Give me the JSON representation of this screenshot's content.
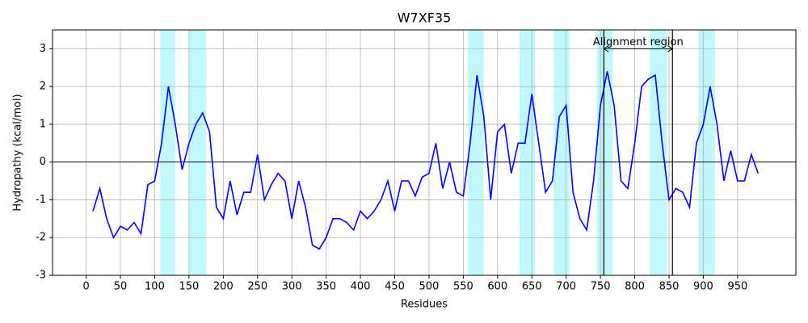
{
  "chart_data": {
    "type": "line",
    "title": "W7XF35",
    "xlabel": "Residues",
    "ylabel": "Hydropathy (kcal/mol)",
    "x": [
      10,
      20,
      30,
      40,
      50,
      60,
      70,
      80,
      90,
      100,
      110,
      120,
      130,
      140,
      150,
      160,
      170,
      180,
      190,
      200,
      210,
      220,
      230,
      240,
      250,
      260,
      270,
      280,
      290,
      300,
      310,
      320,
      330,
      340,
      350,
      360,
      370,
      380,
      390,
      400,
      410,
      420,
      430,
      440,
      450,
      460,
      470,
      480,
      490,
      500,
      510,
      520,
      530,
      540,
      550,
      560,
      570,
      580,
      590,
      600,
      610,
      620,
      630,
      640,
      650,
      660,
      670,
      680,
      690,
      700,
      710,
      720,
      730,
      740,
      750,
      760,
      770,
      780,
      790,
      800,
      810,
      820,
      830,
      840,
      850,
      860,
      870,
      880,
      890,
      900,
      910,
      920,
      930,
      940,
      950,
      960,
      970,
      980
    ],
    "series": [
      {
        "name": "Hydropathy",
        "color": "#0000ff",
        "values": [
          -1.3,
          -0.7,
          -1.5,
          -2.0,
          -1.7,
          -1.8,
          -1.6,
          -1.9,
          -0.6,
          -0.5,
          0.5,
          2.0,
          1.0,
          -0.2,
          0.5,
          1.0,
          1.3,
          0.8,
          -1.2,
          -1.5,
          -0.5,
          -1.4,
          -0.8,
          -0.8,
          0.2,
          -1.0,
          -0.6,
          -0.3,
          -0.5,
          -1.5,
          -0.5,
          -1.2,
          -2.2,
          -2.3,
          -2.0,
          -1.5,
          -1.5,
          -1.6,
          -1.8,
          -1.3,
          -1.5,
          -1.3,
          -1.0,
          -0.5,
          -1.3,
          -0.5,
          -0.5,
          -0.9,
          -0.4,
          -0.3,
          0.5,
          -0.7,
          0.0,
          -0.8,
          -0.9,
          0.5,
          2.3,
          1.2,
          -1.0,
          0.8,
          1.0,
          -0.3,
          0.5,
          0.5,
          1.8,
          0.5,
          -0.8,
          -0.5,
          1.2,
          1.5,
          -0.8,
          -1.5,
          -1.8,
          -0.5,
          1.5,
          2.4,
          1.5,
          -0.5,
          -0.7,
          0.5,
          2.0,
          2.2,
          2.3,
          0.5,
          -1.0,
          -0.7,
          -0.8,
          -1.2,
          0.5,
          1.0,
          2.0,
          1.0,
          -0.5,
          0.3,
          -0.5,
          -0.5,
          0.2,
          -0.3
        ]
      }
    ],
    "regions": [
      [
        108,
        130
      ],
      [
        150,
        175
      ],
      [
        557,
        580
      ],
      [
        632,
        655
      ],
      [
        682,
        705
      ],
      [
        745,
        768
      ],
      [
        822,
        847
      ],
      [
        893,
        917
      ]
    ],
    "region_color": "#bff9fc",
    "vlines": [
      755,
      855
    ],
    "annotation": {
      "text": "Alignment region",
      "x1": 755,
      "x2": 855,
      "y": 3
    },
    "xlim": [
      -49,
      1035
    ],
    "ylim": [
      -3,
      3.5
    ],
    "xticks": [
      0,
      50,
      100,
      150,
      200,
      250,
      300,
      350,
      400,
      450,
      500,
      550,
      600,
      650,
      700,
      750,
      800,
      850,
      900,
      950
    ],
    "yticks": [
      -3,
      -2,
      -1,
      0,
      1,
      2,
      3
    ],
    "grid": true
  }
}
